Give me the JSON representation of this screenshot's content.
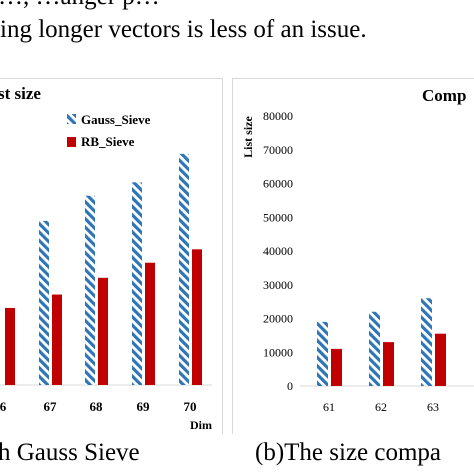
{
  "page_text": {
    "line1": "…, …anger p…",
    "line2": "ing longer vectors is less of an issue."
  },
  "captions": {
    "left": "h Gauss Sieve",
    "right": "(b)The size compa"
  },
  "chart_data": [
    {
      "type": "bar",
      "title": "st size",
      "xlabel": "Dim",
      "ylabel": "",
      "categories": [
        "6",
        "67",
        "68",
        "69",
        "70"
      ],
      "series": [
        {
          "name": "Gauss_Sieve",
          "values": [
            null,
            49000,
            56500,
            60500,
            69000
          ],
          "color": "#2e75b6",
          "pattern": "diagonal-stripe"
        },
        {
          "name": "RB_Sieve",
          "values": [
            23000,
            27000,
            32000,
            36500,
            40500
          ],
          "color": "#c00000",
          "pattern": "solid"
        }
      ],
      "ylim": [
        0,
        80000
      ],
      "legend": "top-right"
    },
    {
      "type": "bar",
      "title": "Comp",
      "xlabel": "",
      "ylabel": "List size",
      "categories": [
        "61",
        "62",
        "63"
      ],
      "yticks": [
        "0",
        "10000",
        "20000",
        "30000",
        "40000",
        "50000",
        "60000",
        "70000",
        "80000"
      ],
      "series": [
        {
          "values": [
            19000,
            22000,
            26000
          ],
          "color": "#2e75b6",
          "pattern": "diagonal-stripe"
        },
        {
          "values": [
            11000,
            13000,
            15500
          ],
          "color": "#c00000",
          "pattern": "solid"
        }
      ],
      "ylim": [
        0,
        80000
      ],
      "grid": false
    }
  ]
}
